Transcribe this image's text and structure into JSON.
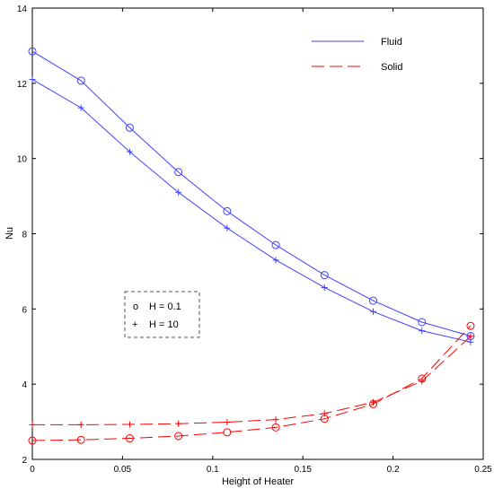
{
  "chart_data": {
    "type": "line",
    "xlabel": "Height of Heater",
    "ylabel": "Nu",
    "xlim": [
      0,
      0.25
    ],
    "ylim": [
      2,
      14
    ],
    "x_ticks": [
      "0",
      "0.05",
      "0.1",
      "0.15",
      "0.2",
      "0.25"
    ],
    "y_ticks": [
      "2",
      "4",
      "6",
      "8",
      "10",
      "12",
      "14"
    ],
    "grid": false,
    "series": [
      {
        "name": "Fluid",
        "group": "fluid",
        "marker": "circle",
        "color": "#4040ff",
        "x": [
          0,
          0.027,
          0.054,
          0.081,
          0.108,
          0.135,
          0.162,
          0.189,
          0.216,
          0.243
        ],
        "y": [
          12.85,
          12.07,
          10.82,
          9.64,
          8.6,
          7.7,
          6.9,
          6.22,
          5.65,
          5.28
        ]
      },
      {
        "name": "Fluid",
        "group": "fluid",
        "marker": "plus",
        "color": "#4040ff",
        "x": [
          0,
          0.027,
          0.054,
          0.081,
          0.108,
          0.135,
          0.162,
          0.189,
          0.216,
          0.243
        ],
        "y": [
          12.1,
          11.35,
          10.18,
          9.1,
          8.15,
          7.3,
          6.57,
          5.93,
          5.42,
          5.12
        ]
      },
      {
        "name": "Solid",
        "group": "solid",
        "marker": "circle",
        "color": "#ff0000",
        "x": [
          0,
          0.027,
          0.054,
          0.081,
          0.108,
          0.135,
          0.162,
          0.189,
          0.216,
          0.243
        ],
        "y": [
          2.5,
          2.52,
          2.56,
          2.62,
          2.72,
          2.85,
          3.08,
          3.47,
          4.15,
          5.55
        ]
      },
      {
        "name": "Solid",
        "group": "solid",
        "marker": "plus",
        "color": "#ff0000",
        "x": [
          0,
          0.027,
          0.054,
          0.081,
          0.108,
          0.135,
          0.162,
          0.189,
          0.216,
          0.243
        ],
        "y": [
          2.92,
          2.92,
          2.93,
          2.95,
          2.99,
          3.06,
          3.22,
          3.52,
          4.08,
          5.27
        ]
      }
    ],
    "legend": {
      "placement": "top-right",
      "entries": [
        {
          "label": "Fluid",
          "color": "#4040ff",
          "style": "solid"
        },
        {
          "label": "Solid",
          "color": "#ff0000",
          "style": "dashed"
        }
      ]
    },
    "marker_key": {
      "placement": "center-left",
      "entries": [
        {
          "symbol": "o",
          "label": "H = 0.1"
        },
        {
          "symbol": "+",
          "label": "H = 10"
        }
      ]
    }
  }
}
